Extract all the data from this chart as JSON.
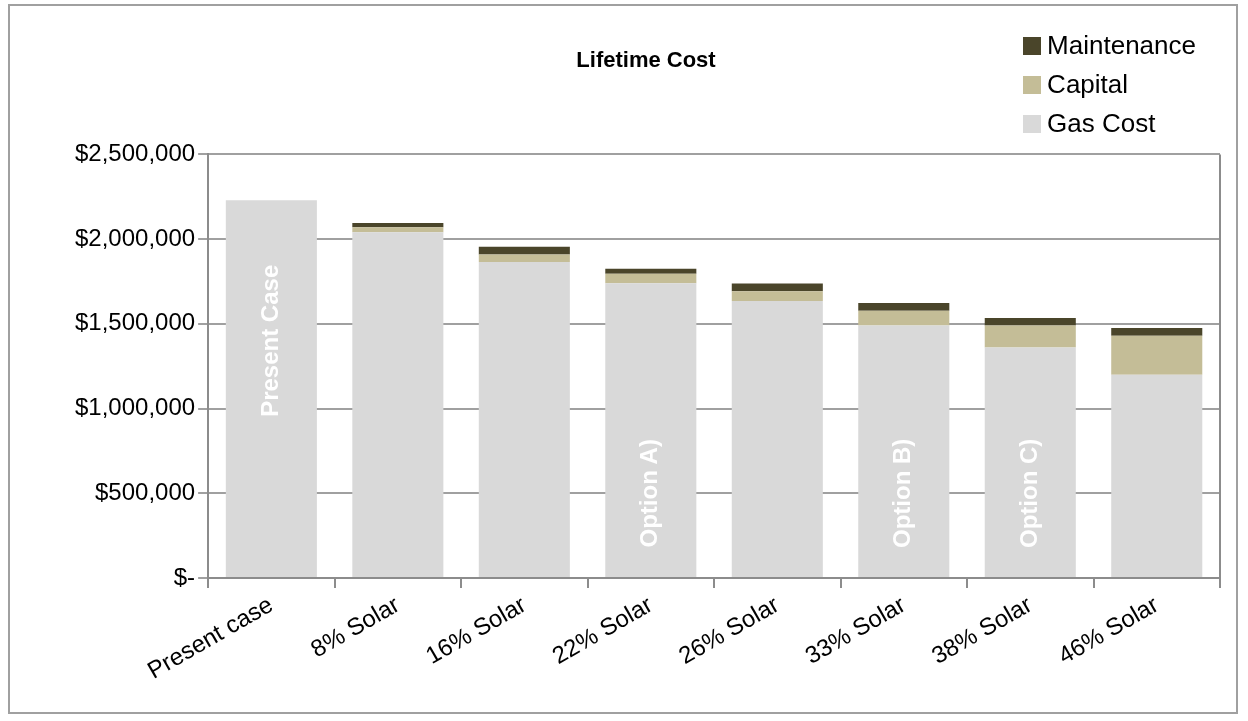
{
  "chart_data": {
    "type": "bar",
    "title": "Lifetime Cost",
    "stacked": true,
    "categories": [
      "Present case",
      "8% Solar",
      "16% Solar",
      "22% Solar",
      "26% Solar",
      "33% Solar",
      "38% Solar",
      "46% Solar"
    ],
    "series": [
      {
        "name": "Gas Cost",
        "color": "#d9d9d9",
        "values": [
          2230000,
          2040000,
          1865000,
          1740000,
          1635000,
          1490000,
          1360000,
          1200000
        ]
      },
      {
        "name": "Capital",
        "color": "#c4bd97",
        "values": [
          0,
          30000,
          45000,
          55000,
          58000,
          88000,
          130000,
          230000
        ]
      },
      {
        "name": "Maintenance",
        "color": "#4a452a",
        "values": [
          0,
          25000,
          45000,
          30000,
          45000,
          45000,
          45000,
          45000
        ]
      }
    ],
    "ylim": [
      0,
      2500000
    ],
    "yticks": [
      {
        "value": 0,
        "label": "$-"
      },
      {
        "value": 500000,
        "label": "$500,000"
      },
      {
        "value": 1000000,
        "label": "$1,000,000"
      },
      {
        "value": 1500000,
        "label": "$1,500,000"
      },
      {
        "value": 2000000,
        "label": "$2,000,000"
      },
      {
        "value": 2500000,
        "label": "$2,500,000"
      }
    ],
    "grid": "y",
    "legend": "top right",
    "annotations": [
      "Present Case",
      "Option A)",
      "Option B)",
      "Option C)"
    ]
  }
}
